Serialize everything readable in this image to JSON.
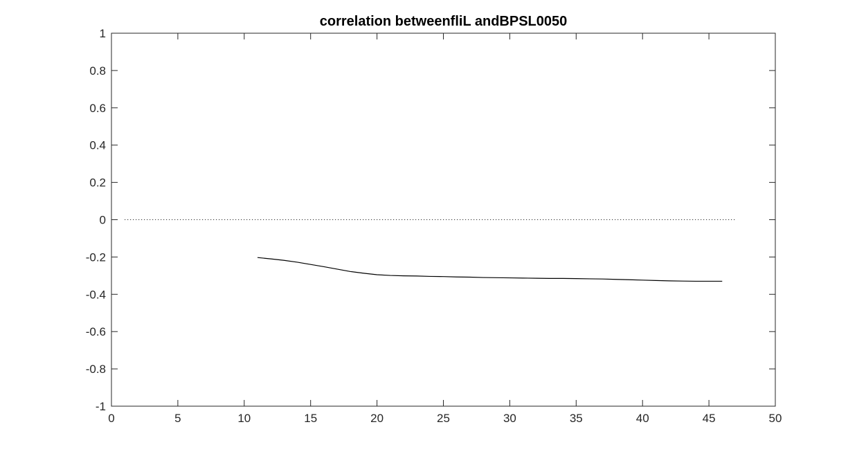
{
  "chart_data": {
    "type": "line",
    "title": "correlation betweenfliL andBPSL0050",
    "xlabel": "",
    "ylabel": "",
    "xlim": [
      0,
      50
    ],
    "ylim": [
      -1,
      1
    ],
    "xticks": [
      0,
      5,
      10,
      15,
      20,
      25,
      30,
      35,
      40,
      45,
      50
    ],
    "yticks": [
      1,
      0.8,
      0.6,
      0.4,
      0.2,
      0,
      -0.2,
      -0.4,
      -0.6,
      -0.8,
      -1
    ],
    "xtick_labels": [
      "0",
      "5",
      "10",
      "15",
      "20",
      "25",
      "30",
      "35",
      "40",
      "45",
      "50"
    ],
    "ytick_labels": [
      "1",
      "0.8",
      "0.6",
      "0.4",
      "0.2",
      "0",
      "-0.2",
      "-0.4",
      "-0.6",
      "-0.8",
      "-1"
    ],
    "grid": false,
    "series": [
      {
        "style": "solid",
        "color": "#000000",
        "x": [
          11,
          12,
          13,
          14,
          15,
          16,
          17,
          18,
          19,
          20,
          21,
          22,
          23,
          24,
          25,
          26,
          27,
          28,
          29,
          30,
          31,
          32,
          33,
          34,
          35,
          36,
          37,
          38,
          39,
          40,
          41,
          42,
          43,
          44,
          45,
          46
        ],
        "y": [
          -0.203,
          -0.21,
          -0.218,
          -0.228,
          -0.24,
          -0.252,
          -0.265,
          -0.278,
          -0.287,
          -0.295,
          -0.299,
          -0.301,
          -0.302,
          -0.304,
          -0.305,
          -0.307,
          -0.308,
          -0.31,
          -0.311,
          -0.312,
          -0.313,
          -0.314,
          -0.315,
          -0.315,
          -0.316,
          -0.317,
          -0.318,
          -0.32,
          -0.322,
          -0.324,
          -0.326,
          -0.328,
          -0.329,
          -0.33,
          -0.33,
          -0.33
        ]
      },
      {
        "style": "dotted",
        "color": "#000000",
        "x": [
          1,
          47
        ],
        "y": [
          0,
          0
        ]
      }
    ]
  }
}
